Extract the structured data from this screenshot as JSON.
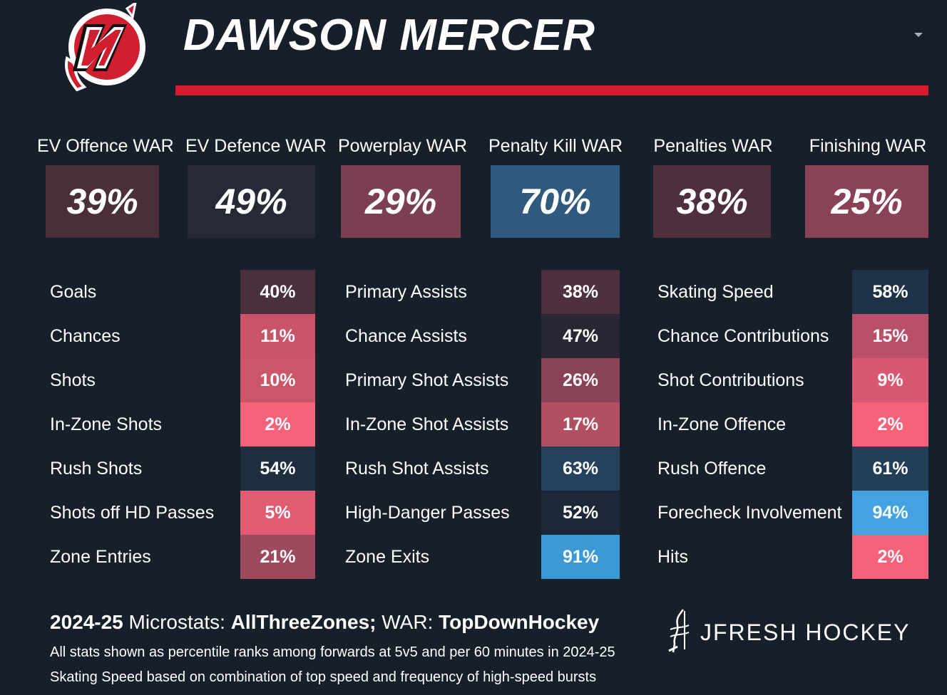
{
  "header": {
    "player_name": "DAWSON MERCER",
    "logo_icon": "devils-logo-icon",
    "accent_color": "#cf1f2f"
  },
  "war": [
    {
      "label": "EV Offence WAR",
      "value": "39%",
      "color": "#4a2f3b"
    },
    {
      "label": "EV Defence WAR",
      "value": "49%",
      "color": "#252a36"
    },
    {
      "label": "Powerplay WAR",
      "value": "29%",
      "color": "#7b3f52"
    },
    {
      "label": "Penalty Kill WAR",
      "value": "70%",
      "color": "#2f5a7d"
    },
    {
      "label": "Penalties WAR",
      "value": "38%",
      "color": "#4f2f3e"
    },
    {
      "label": "Finishing WAR",
      "value": "25%",
      "color": "#8a4356"
    }
  ],
  "stats": {
    "col1": [
      {
        "label": "Goals",
        "value": "40%",
        "color": "#4a303d"
      },
      {
        "label": "Chances",
        "value": "11%",
        "color": "#c95469"
      },
      {
        "label": "Shots",
        "value": "10%",
        "color": "#cc5669"
      },
      {
        "label": "In-Zone Shots",
        "value": "2%",
        "color": "#f5627a"
      },
      {
        "label": "Rush Shots",
        "value": "54%",
        "color": "#1f2e3f"
      },
      {
        "label": "Shots off HD Passes",
        "value": "5%",
        "color": "#e15b73"
      },
      {
        "label": "Zone Entries",
        "value": "21%",
        "color": "#9d4a5f"
      }
    ],
    "col2": [
      {
        "label": "Primary Assists",
        "value": "38%",
        "color": "#4f303f"
      },
      {
        "label": "Chance Assists",
        "value": "47%",
        "color": "#2a2633"
      },
      {
        "label": "Primary Shot Assists",
        "value": "26%",
        "color": "#8a4356"
      },
      {
        "label": "In-Zone Shot Assists",
        "value": "17%",
        "color": "#b14f63"
      },
      {
        "label": "Rush Shot Assists",
        "value": "63%",
        "color": "#24425e"
      },
      {
        "label": "High-Danger Passes",
        "value": "52%",
        "color": "#1c2737"
      },
      {
        "label": "Zone Exits",
        "value": "91%",
        "color": "#3d98d6"
      }
    ],
    "col3": [
      {
        "label": "Skating Speed",
        "value": "58%",
        "color": "#1e3347"
      },
      {
        "label": "Chance Contributions",
        "value": "15%",
        "color": "#b9506a"
      },
      {
        "label": "Shot Contributions",
        "value": "9%",
        "color": "#d75870"
      },
      {
        "label": "In-Zone Offence",
        "value": "2%",
        "color": "#f5627a"
      },
      {
        "label": "Rush Offence",
        "value": "61%",
        "color": "#233e57"
      },
      {
        "label": "Forecheck Involvement",
        "value": "94%",
        "color": "#42a3e0"
      },
      {
        "label": "Hits",
        "value": "2%",
        "color": "#f5627a"
      }
    ]
  },
  "footer": {
    "season": "2024-25",
    "micro_label": " Microstats: ",
    "micro_source": "AllThreeZones;",
    "war_label": " WAR: ",
    "war_source": "TopDownHockey",
    "note1": "All stats shown as percentile ranks among forwards at 5v5 and per 60 minutes in 2024-25",
    "note2": "Skating Speed based on combination of top speed and frequency of high-speed bursts",
    "brand": "JFRESH HOCKEY"
  }
}
